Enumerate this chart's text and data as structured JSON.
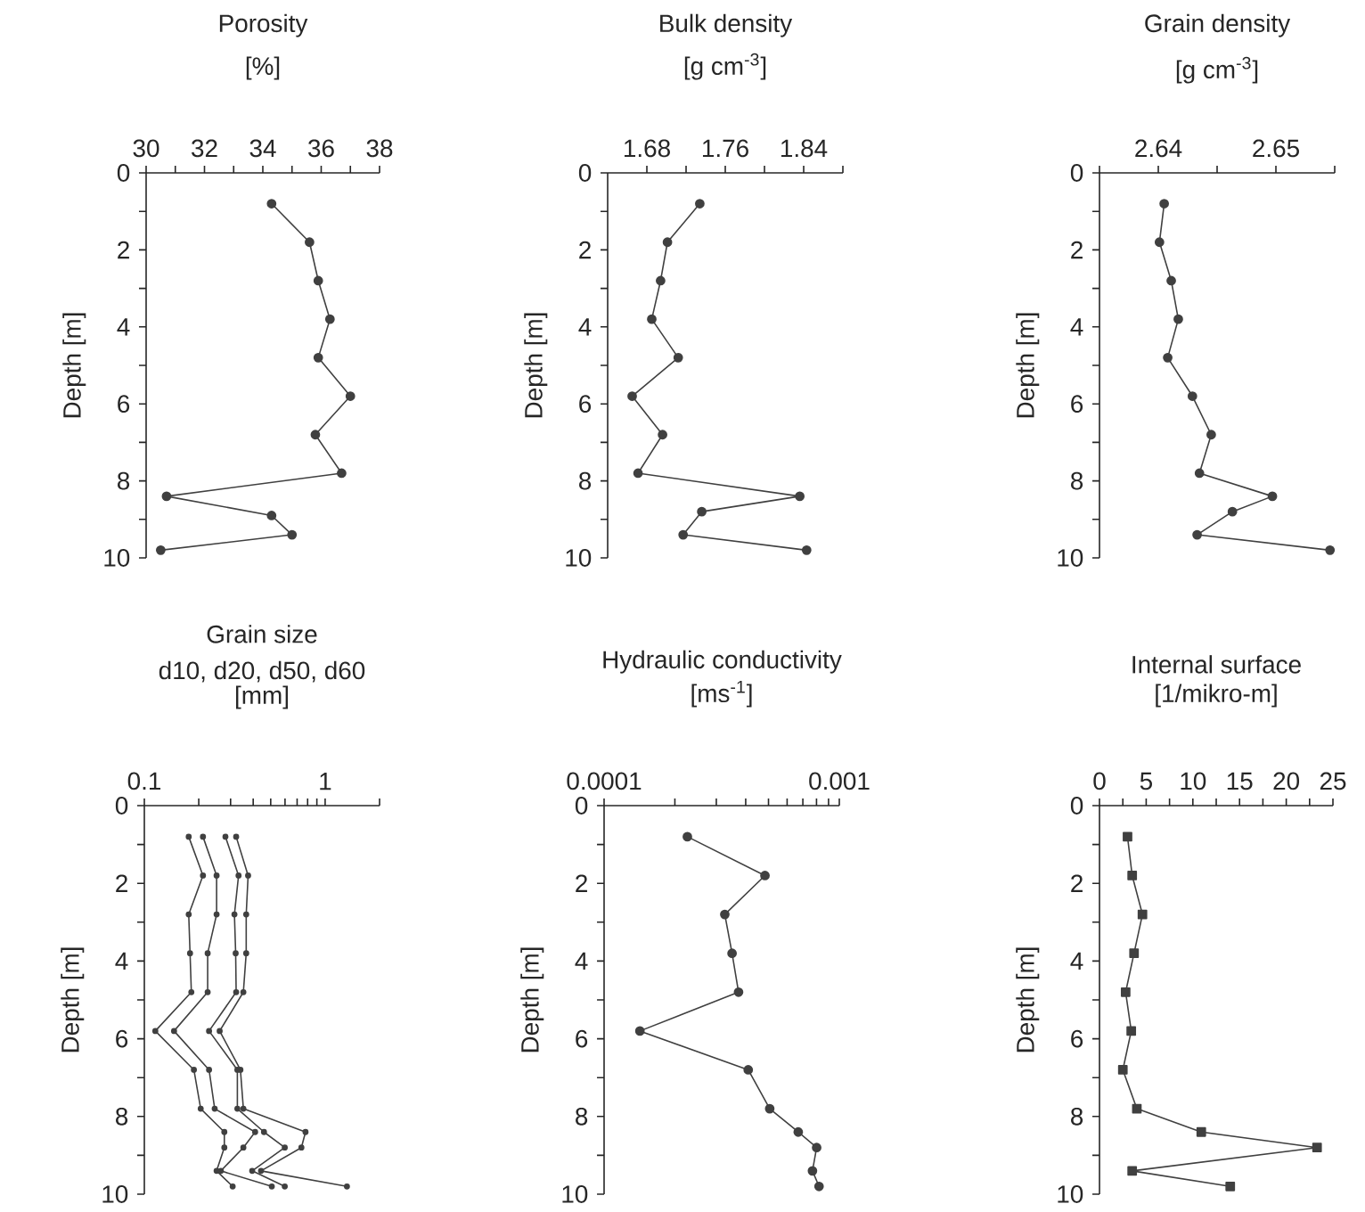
{
  "chart_data": [
    {
      "type": "line",
      "title": "Porosity",
      "xlabel": "[%]",
      "ylabel": "Depth [m]",
      "marker": "circle",
      "xlim": [
        30,
        38
      ],
      "xticks": [
        30,
        {
          "value": 31,
          "label": null
        },
        32,
        {
          "value": 33,
          "label": null
        },
        34,
        {
          "value": 35,
          "label": null
        },
        36,
        {
          "value": 37,
          "label": null
        },
        38
      ],
      "ylim": [
        10,
        0
      ],
      "yticks": [
        0,
        {
          "value": 1,
          "label": null
        },
        2,
        {
          "value": 3,
          "label": null
        },
        4,
        {
          "value": 5,
          "label": null
        },
        6,
        {
          "value": 7,
          "label": null
        },
        8,
        {
          "value": 9,
          "label": null
        },
        10
      ],
      "series": [
        {
          "color": "#404040",
          "x": [
            34.3,
            35.6,
            35.9,
            36.3,
            35.9,
            37.0,
            35.8,
            36.7,
            30.7,
            34.3,
            35.0,
            30.5
          ],
          "values": [
            0.8,
            1.8,
            2.8,
            3.8,
            4.8,
            5.8,
            6.8,
            7.8,
            8.4,
            8.9,
            9.4,
            9.8
          ]
        }
      ]
    },
    {
      "type": "line",
      "title": "Bulk density",
      "xlabel": "[g cm$^{-3}$]",
      "ylabel": "Depth [m]",
      "marker": "circle",
      "xlim": [
        1.64,
        1.88
      ],
      "xticks": [
        1.68,
        {
          "value": 1.72,
          "label": null
        },
        1.76,
        {
          "value": 1.8,
          "label": null
        },
        1.84,
        {
          "value": 1.88,
          "label": null
        }
      ],
      "ylim": [
        10,
        0
      ],
      "yticks": [
        0,
        {
          "value": 1,
          "label": null
        },
        2,
        {
          "value": 3,
          "label": null
        },
        4,
        {
          "value": 5,
          "label": null
        },
        6,
        {
          "value": 7,
          "label": null
        },
        8,
        {
          "value": 9,
          "label": null
        },
        10
      ],
      "series": [
        {
          "color": "#404040",
          "x": [
            1.734,
            1.701,
            1.694,
            1.685,
            1.712,
            1.665,
            1.696,
            1.671,
            1.836,
            1.736,
            1.717,
            1.843
          ],
          "values": [
            0.8,
            1.8,
            2.8,
            3.8,
            4.8,
            5.8,
            6.8,
            7.8,
            8.4,
            8.8,
            9.4,
            9.8
          ]
        }
      ]
    },
    {
      "type": "line",
      "title": "Grain density",
      "xlabel": "[g cm$^{-3}$]",
      "ylabel": "Depth [m]",
      "marker": "circle",
      "xlim": [
        2.635,
        2.655
      ],
      "xticks": [
        {
          "value": 2.635,
          "label": null
        },
        2.64,
        {
          "value": 2.645,
          "label": null
        },
        2.65,
        {
          "value": 2.655,
          "label": null
        }
      ],
      "ylim": [
        10,
        0
      ],
      "yticks": [
        0,
        {
          "value": 1,
          "label": null
        },
        2,
        {
          "value": 3,
          "label": null
        },
        4,
        {
          "value": 5,
          "label": null
        },
        6,
        {
          "value": 7,
          "label": null
        },
        8,
        {
          "value": 9,
          "label": null
        },
        10
      ],
      "series": [
        {
          "color": "#404040",
          "x": [
            2.6405,
            2.6401,
            2.6411,
            2.6417,
            2.6408,
            2.6429,
            2.6445,
            2.6435,
            2.6497,
            2.6463,
            2.6433,
            2.6546
          ],
          "values": [
            0.8,
            1.8,
            2.8,
            3.8,
            4.8,
            5.8,
            6.8,
            7.8,
            8.4,
            8.8,
            9.4,
            9.8
          ]
        }
      ]
    },
    {
      "type": "line",
      "title": "Grain size",
      "subtitle": "d10, d20, d50, d60",
      "xlabel": "[mm]",
      "ylabel": "Depth [m]",
      "marker": "circle",
      "log": "x",
      "xlim": [
        0.1,
        2
      ],
      "xticks": [
        0.1,
        {
          "value": 0.2,
          "label": null
        },
        {
          "value": 0.3,
          "label": null
        },
        {
          "value": 0.4,
          "label": null
        },
        {
          "value": 0.5,
          "label": null
        },
        {
          "value": 0.6,
          "label": null
        },
        {
          "value": 0.7,
          "label": null
        },
        {
          "value": 0.8,
          "label": null
        },
        {
          "value": 0.9,
          "label": null
        },
        1,
        {
          "value": 2,
          "label": null
        }
      ],
      "ylim": [
        10,
        0
      ],
      "yticks": [
        0,
        {
          "value": 1,
          "label": null
        },
        2,
        {
          "value": 3,
          "label": null
        },
        4,
        {
          "value": 5,
          "label": null
        },
        6,
        {
          "value": 7,
          "label": null
        },
        8,
        {
          "value": 9,
          "label": null
        },
        10
      ],
      "series": [
        {
          "color": "#404040",
          "x": [
            0.176,
            0.211,
            0.176,
            0.179,
            0.182,
            0.115,
            0.188,
            0.205,
            0.277,
            0.277,
            0.251,
            0.308
          ],
          "values": [
            0.8,
            1.8,
            2.8,
            3.8,
            4.8,
            5.8,
            6.8,
            7.8,
            8.4,
            8.8,
            9.4,
            9.8
          ]
        },
        {
          "color": "#404040",
          "x": [
            0.211,
            0.251,
            0.251,
            0.224,
            0.224,
            0.146,
            0.228,
            0.245,
            0.41,
            0.353,
            0.265,
            0.507
          ],
          "values": [
            0.8,
            1.8,
            2.8,
            3.8,
            4.8,
            5.8,
            6.8,
            7.8,
            8.4,
            8.8,
            9.4,
            9.8
          ]
        },
        {
          "color": "#404040",
          "x": [
            0.281,
            0.332,
            0.315,
            0.32,
            0.322,
            0.228,
            0.327,
            0.327,
            0.459,
            0.598,
            0.395,
            0.598
          ],
          "values": [
            0.8,
            1.8,
            2.8,
            3.8,
            4.8,
            5.8,
            6.8,
            7.8,
            8.4,
            8.8,
            9.4,
            9.8
          ]
        },
        {
          "color": "#404040",
          "x": [
            0.322,
            0.375,
            0.366,
            0.366,
            0.353,
            0.261,
            0.34,
            0.353,
            0.779,
            0.739,
            0.442,
            1.32
          ],
          "values": [
            0.8,
            1.8,
            2.8,
            3.8,
            4.8,
            5.8,
            6.8,
            7.8,
            8.4,
            8.8,
            9.4,
            9.8
          ]
        }
      ]
    },
    {
      "type": "line",
      "title": "Hydraulic conductivity",
      "xlabel": "[ms$^{-1}$]",
      "ylabel": "Depth [m]",
      "marker": "circle",
      "log": "x",
      "xlim": [
        0.0001,
        0.001
      ],
      "xticks": [
        0.0001,
        {
          "value": 0.0002,
          "label": null
        },
        {
          "value": 0.0003,
          "label": null
        },
        {
          "value": 0.0004,
          "label": null
        },
        {
          "value": 0.0005,
          "label": null
        },
        {
          "value": 0.0006,
          "label": null
        },
        {
          "value": 0.0007,
          "label": null
        },
        {
          "value": 0.0008,
          "label": null
        },
        {
          "value": 0.0009,
          "label": null
        },
        0.001
      ],
      "ylim": [
        10,
        0
      ],
      "yticks": [
        0,
        {
          "value": 1,
          "label": null
        },
        2,
        {
          "value": 3,
          "label": null
        },
        4,
        {
          "value": 5,
          "label": null
        },
        6,
        {
          "value": 7,
          "label": null
        },
        8,
        {
          "value": 9,
          "label": null
        },
        10
      ],
      "series": [
        {
          "color": "#404040",
          "x": [
            0.000226,
            0.000483,
            0.000326,
            0.00035,
            0.000373,
            0.000142,
            0.00041,
            0.000506,
            0.000669,
            0.000801,
            0.000769,
            0.00082
          ],
          "values": [
            0.8,
            1.8,
            2.8,
            3.8,
            4.8,
            5.8,
            6.8,
            7.8,
            8.4,
            8.8,
            9.4,
            9.8
          ]
        }
      ]
    },
    {
      "type": "line",
      "title": "Internal surface",
      "xlabel": "[1/mikro-m]",
      "ylabel": "Depth [m]",
      "marker": "square",
      "xlim": [
        0,
        25
      ],
      "xticks": [
        0,
        {
          "value": 2.5,
          "label": null
        },
        5,
        {
          "value": 7.5,
          "label": null
        },
        10,
        {
          "value": 12.5,
          "label": null
        },
        15,
        {
          "value": 17.5,
          "label": null
        },
        20,
        {
          "value": 22.5,
          "label": null
        },
        25
      ],
      "ylim": [
        10,
        0
      ],
      "yticks": [
        0,
        {
          "value": 1,
          "label": null
        },
        2,
        {
          "value": 3,
          "label": null
        },
        4,
        {
          "value": 5,
          "label": null
        },
        6,
        {
          "value": 7,
          "label": null
        },
        8,
        {
          "value": 9,
          "label": null
        },
        10
      ],
      "series": [
        {
          "color": "#404040",
          "x": [
            3.0,
            3.5,
            4.6,
            3.7,
            2.8,
            3.4,
            2.5,
            4.0,
            10.9,
            23.3,
            3.5,
            14.0
          ],
          "values": [
            0.8,
            1.8,
            2.8,
            3.8,
            4.8,
            5.8,
            6.8,
            7.8,
            8.4,
            8.8,
            9.4,
            9.8
          ]
        }
      ]
    }
  ]
}
